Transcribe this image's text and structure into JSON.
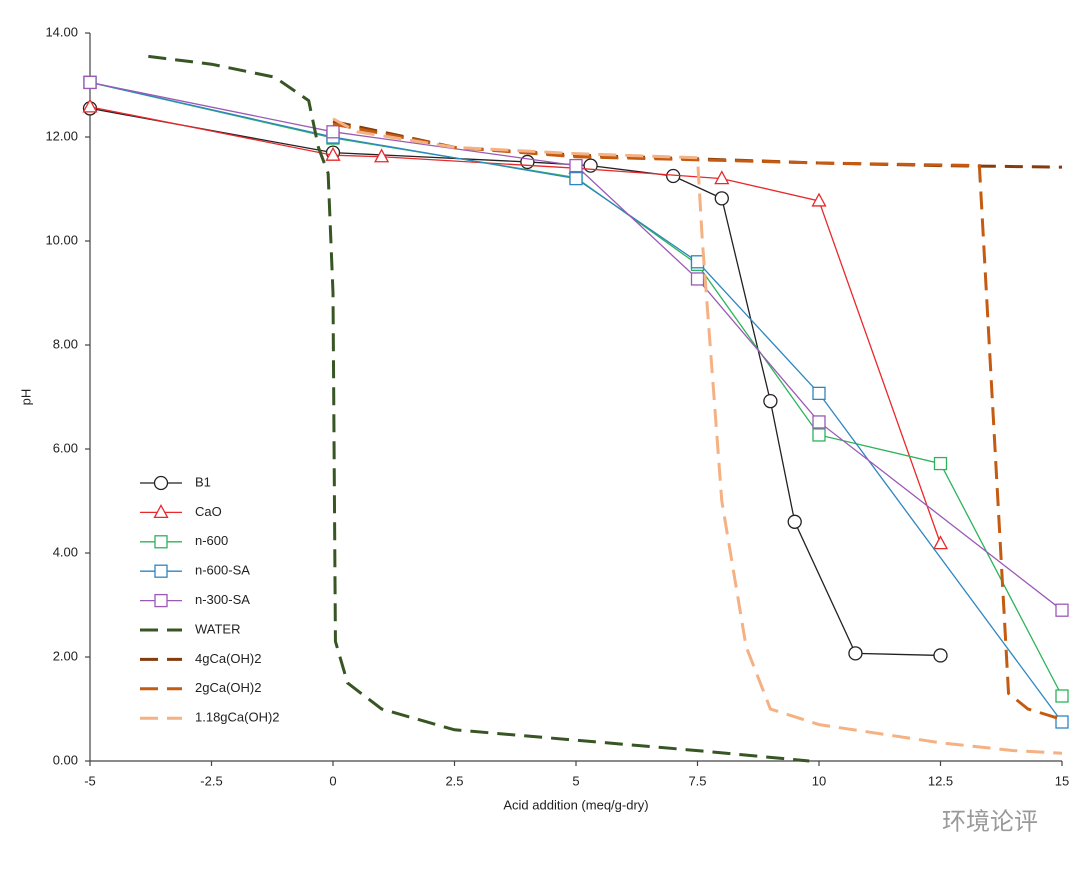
{
  "chart_data": {
    "type": "line",
    "x_label": "Acid addition (meq/g-dry)",
    "y_label": "pH",
    "xlim": [
      -5,
      15
    ],
    "xticks": [
      -5,
      -2.5,
      0,
      2.5,
      5,
      7.5,
      10,
      12.5,
      15
    ],
    "ylim": [
      0,
      14
    ],
    "yticks": [
      {
        "value": 0,
        "label": "0.00"
      },
      {
        "value": 2,
        "label": "2.00"
      },
      {
        "value": 4,
        "label": "4.00"
      },
      {
        "value": 6,
        "label": "6.00"
      },
      {
        "value": 8,
        "label": "8.00"
      },
      {
        "value": 10,
        "label": "10.00"
      },
      {
        "value": 12,
        "label": "12.00"
      },
      {
        "value": 14,
        "label": "14.00"
      }
    ],
    "grid": false,
    "legend": "lower-left",
    "series": [
      {
        "name": "B1",
        "color": "#222222",
        "marker": "circle",
        "dash": false,
        "x": [
          -5,
          0,
          4,
          5.3,
          7,
          8,
          9,
          9.5,
          10.75,
          12.5
        ],
        "values": [
          12.55,
          11.7,
          11.52,
          11.45,
          11.25,
          10.82,
          6.92,
          4.6,
          2.07,
          2.03
        ]
      },
      {
        "name": "CaO",
        "color": "#e8292b",
        "marker": "triangle",
        "dash": false,
        "x": [
          -5,
          0,
          1,
          5,
          8,
          10,
          12.5
        ],
        "values": [
          12.58,
          11.65,
          11.62,
          11.4,
          11.2,
          10.77,
          4.18
        ]
      },
      {
        "name": "n-600",
        "color": "#2db35a",
        "marker": "square",
        "dash": false,
        "x": [
          -5,
          0,
          5,
          7.5,
          10,
          12.5,
          15
        ],
        "values": [
          13.05,
          11.98,
          11.22,
          9.55,
          6.27,
          5.72,
          1.25
        ]
      },
      {
        "name": "n-600-SA",
        "color": "#2e86c1",
        "marker": "square",
        "dash": false,
        "x": [
          -5,
          0,
          5,
          7.5,
          10,
          15
        ],
        "values": [
          13.05,
          12.0,
          11.2,
          9.6,
          7.07,
          0.75
        ]
      },
      {
        "name": "n-300-SA",
        "color": "#9b59b6",
        "marker": "square",
        "dash": false,
        "x": [
          -5,
          0,
          5,
          7.5,
          10,
          15
        ],
        "values": [
          13.05,
          12.1,
          11.45,
          9.27,
          6.52,
          2.9
        ]
      },
      {
        "name": "WATER",
        "color": "#375623",
        "marker": "none",
        "dash": true,
        "x": [
          -3.8,
          -2.5,
          -1.2,
          -0.5,
          -0.3,
          -0.1,
          0,
          0.05,
          0.3,
          1,
          2.5,
          5,
          7.5,
          9.8
        ],
        "values": [
          13.55,
          13.4,
          13.15,
          12.7,
          11.8,
          11.3,
          9,
          2.3,
          1.5,
          1.0,
          0.6,
          0.4,
          0.2,
          0.0
        ]
      },
      {
        "name": "4gCa(OH)2",
        "color": "#843c0c",
        "marker": "none",
        "dash": true,
        "x": [
          0,
          2.5,
          5,
          7.5,
          10,
          12.5,
          15
        ],
        "values": [
          12.3,
          11.8,
          11.65,
          11.58,
          11.5,
          11.45,
          11.42
        ]
      },
      {
        "name": "2gCa(OH)2",
        "color": "#c55a11",
        "marker": "none",
        "dash": true,
        "x": [
          0,
          2.5,
          5,
          8,
          10,
          13.3,
          13.9,
          14.3,
          15
        ],
        "values": [
          12.25,
          11.8,
          11.62,
          11.55,
          11.5,
          11.45,
          1.3,
          1.0,
          0.8
        ]
      },
      {
        "name": "1.18gCa(OH)2",
        "color": "#f4b183",
        "marker": "none",
        "dash": true,
        "x": [
          0,
          0.5,
          2.5,
          5,
          7.5,
          7.6,
          8,
          8.5,
          9,
          10,
          12.5,
          14,
          15
        ],
        "values": [
          12.35,
          12.1,
          11.8,
          11.68,
          11.6,
          10,
          5,
          2.2,
          1.0,
          0.7,
          0.35,
          0.2,
          0.15
        ]
      }
    ],
    "watermark": "环境论评"
  }
}
